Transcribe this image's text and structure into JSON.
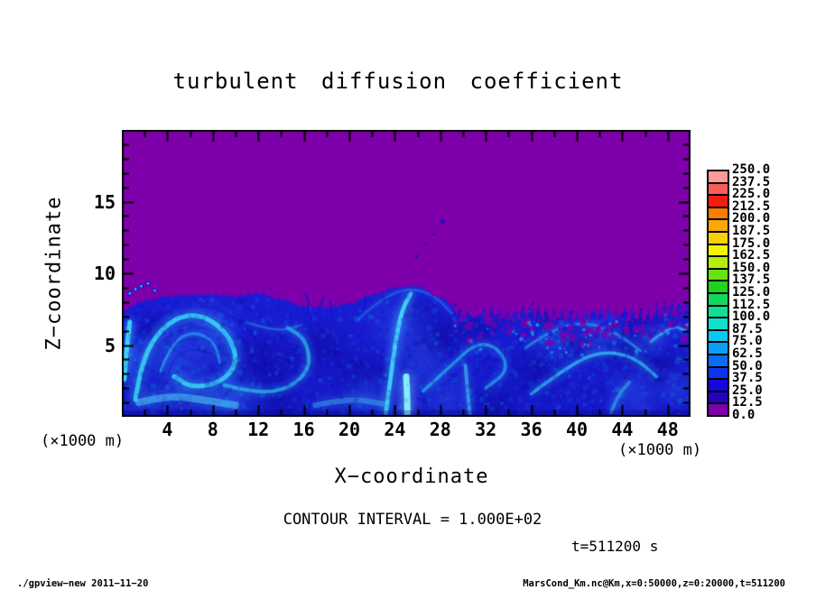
{
  "title": "turbulent diffusion coefficient",
  "axes": {
    "x": {
      "label": "X−coordinate",
      "unit": "(×1000 m)",
      "min": 0,
      "max": 50,
      "major_tick_values": [
        4,
        8,
        12,
        16,
        20,
        24,
        28,
        32,
        36,
        40,
        44,
        48
      ],
      "minor_step": 2
    },
    "z": {
      "label": "Z−coordinate",
      "unit": "(×1000 m)",
      "min": 0,
      "max": 20,
      "major_tick_values": [
        5,
        10,
        15
      ],
      "minor_step": 1
    }
  },
  "colorbar": {
    "min": 0.0,
    "max": 250.0,
    "step": 12.5,
    "colors": [
      "#7d00aa",
      "#2503bd",
      "#1408dc",
      "#0d35ee",
      "#0a6cf6",
      "#089ff9",
      "#0ac8f3",
      "#0fe0cc",
      "#12dd97",
      "#14d65c",
      "#20d41d",
      "#66e411",
      "#b4ee0b",
      "#f5f208",
      "#f7d107",
      "#f9a805",
      "#f97c04",
      "#f41c0c",
      "#f85d58",
      "#fb9c9a"
    ]
  },
  "annotations": {
    "contour_interval": "CONTOUR INTERVAL = 1.000E+02",
    "time": "t=511200 s"
  },
  "footer": {
    "left": "./gpview−new  2011−11−20",
    "right": "MarsCond_Km.nc@Km,x=0:50000,z=0:20000,t=511200"
  },
  "chart_data": {
    "type": "heatmap",
    "title": "turbulent diffusion coefficient",
    "xlabel": "X-coordinate (×1000 m)",
    "ylabel": "Z-coordinate (×1000 m)",
    "xlim": [
      0,
      50
    ],
    "ylim": [
      0,
      20
    ],
    "value_range": [
      0,
      250
    ],
    "level_step": 12.5,
    "contour_interval": 100.0,
    "time_seconds": 511200,
    "background_color": "#7d00aa",
    "mixed_layer_color": "#1b1cd6",
    "field_summary": "Near-zero diffusion coefficient (0–12.5, purple) fills the region above z≈7–9; below a sharp wavy interface lies a turbulent convective layer with values mostly 25–100 (blue to cyan) organized in vortices, plumes and filaments; interface is smooth with large domes for x<29 and fractally ragged with purple intrusions for x>29; a trail of detached parcels appears near x≈25–28 at z≈10.5–13.6.",
    "interface_profile": {
      "x": [
        0,
        2,
        4,
        6,
        8,
        10,
        12,
        14,
        16,
        18,
        20,
        22,
        24,
        26,
        28,
        30,
        32,
        34,
        36,
        38,
        40,
        42,
        44,
        46,
        48,
        50
      ],
      "z": [
        7.4,
        8.1,
        8.4,
        8.5,
        8.5,
        8.4,
        8.6,
        8.2,
        7.7,
        7.6,
        7.9,
        8.5,
        9.0,
        9.1,
        8.3,
        7.1,
        7.2,
        7.0,
        7.3,
        7.0,
        6.9,
        7.2,
        7.1,
        6.9,
        7.5,
        7.7
      ]
    },
    "features": {
      "filaments": [
        {
          "p": [
            [
              0.2,
              2.6
            ],
            [
              0.4,
              4.5
            ],
            [
              0.7,
              6.6
            ]
          ],
          "w": 5,
          "c": "#40e0ff",
          "a": 0.9,
          "b": 5
        },
        {
          "p": [
            [
              1.2,
              1.2
            ],
            [
              1.6,
              3.4
            ],
            [
              3.0,
              5.8
            ],
            [
              5.2,
              7.1
            ],
            [
              7.5,
              7.0
            ],
            [
              9.5,
              5.6
            ],
            [
              10.2,
              3.8
            ],
            [
              8.8,
              2.4
            ],
            [
              6.2,
              2.0
            ],
            [
              4.6,
              2.8
            ]
          ],
          "w": 5,
          "c": "#38d8f8",
          "a": 0.85,
          "b": 6
        },
        {
          "p": [
            [
              3.4,
              3.2
            ],
            [
              4.4,
              5.2
            ],
            [
              6.4,
              6.0
            ],
            [
              8.2,
              5.2
            ],
            [
              8.6,
              3.8
            ]
          ],
          "w": 3,
          "c": "#2bb8f0",
          "a": 0.55,
          "b": 4
        },
        {
          "p": [
            [
              9.0,
              2.2
            ],
            [
              12.0,
              1.6
            ],
            [
              14.8,
              2.0
            ],
            [
              16.6,
              3.4
            ],
            [
              16.2,
              5.4
            ],
            [
              14.6,
              6.2
            ]
          ],
          "w": 4,
          "c": "#30c8f0",
          "a": 0.65,
          "b": 4
        },
        {
          "p": [
            [
              11.0,
              6.6
            ],
            [
              13.5,
              5.9
            ],
            [
              15.8,
              6.4
            ]
          ],
          "w": 2.5,
          "c": "#2f9fe8",
          "a": 0.45,
          "b": 3
        },
        {
          "p": [
            [
              23.2,
              0.2
            ],
            [
              23.6,
              2.5
            ],
            [
              24.0,
              5.0
            ],
            [
              24.6,
              7.4
            ],
            [
              25.4,
              8.6
            ]
          ],
          "w": 4.5,
          "c": "#45e2ff",
          "a": 0.85,
          "b": 5
        },
        {
          "p": [
            [
              25.1,
              0.0
            ],
            [
              25.1,
              1.3
            ],
            [
              25.0,
              2.8
            ]
          ],
          "w": 7,
          "c": "#86f6ff",
          "a": 0.95,
          "b": 7
        },
        {
          "p": [
            [
              20.8,
              6.8
            ],
            [
              23.0,
              8.4
            ],
            [
              25.5,
              9.0
            ],
            [
              27.6,
              8.4
            ],
            [
              29.0,
              7.2
            ]
          ],
          "w": 3,
          "c": "#2a80e8",
          "a": 0.45,
          "b": 4
        },
        {
          "p": [
            [
              26.5,
              1.8
            ],
            [
              29.0,
              3.6
            ],
            [
              31.2,
              5.2
            ],
            [
              33.2,
              4.8
            ],
            [
              34.0,
              3.2
            ],
            [
              32.0,
              2.0
            ]
          ],
          "w": 3.5,
          "c": "#2fc0f0",
          "a": 0.6,
          "b": 4
        },
        {
          "p": [
            [
              36.0,
              1.6
            ],
            [
              39.0,
              3.4
            ],
            [
              42.0,
              4.6
            ],
            [
              45.0,
              4.2
            ],
            [
              47.0,
              2.8
            ]
          ],
          "w": 3.5,
          "c": "#38d0f8",
          "a": 0.65,
          "b": 4
        },
        {
          "p": [
            [
              35.5,
              4.8
            ],
            [
              38.0,
              6.2
            ],
            [
              41.0,
              6.6
            ],
            [
              43.6,
              5.8
            ],
            [
              45.6,
              4.6
            ]
          ],
          "w": 2.8,
          "c": "#30b0f0",
          "a": 0.55,
          "b": 3
        },
        {
          "p": [
            [
              46.5,
              5.2
            ],
            [
              48.2,
              6.4
            ],
            [
              49.6,
              6.0
            ]
          ],
          "w": 2.8,
          "c": "#40d0f8",
          "a": 0.6,
          "b": 3
        },
        {
          "p": [
            [
              1.5,
              1.0
            ],
            [
              4.0,
              1.5
            ],
            [
              7.0,
              1.2
            ],
            [
              10.0,
              0.8
            ]
          ],
          "w": 8,
          "c": "#50e0f8",
          "a": 0.5,
          "b": 8
        },
        {
          "p": [
            [
              17.0,
              0.8
            ],
            [
              20.0,
              1.3
            ],
            [
              23.0,
              0.9
            ]
          ],
          "w": 6,
          "c": "#40c8f0",
          "a": 0.4,
          "b": 6
        },
        {
          "p": [
            [
              30.6,
              0.2
            ],
            [
              30.4,
              1.8
            ],
            [
              30.2,
              3.6
            ]
          ],
          "w": 4,
          "c": "#48d8f8",
          "a": 0.55,
          "b": 5
        },
        {
          "p": [
            [
              43.0,
              0.3
            ],
            [
              43.6,
              1.5
            ],
            [
              44.6,
              2.4
            ]
          ],
          "w": 4,
          "c": "#40d0f0",
          "a": 0.45,
          "b": 4
        }
      ],
      "dark_patches": [
        [
          12.5,
          3.5,
          4,
          0.5
        ],
        [
          17.5,
          4.8,
          3,
          0.5
        ],
        [
          21,
          3,
          3,
          0.45
        ],
        [
          25.5,
          7.3,
          2.2,
          0.4
        ],
        [
          28,
          5.5,
          3.2,
          0.5
        ],
        [
          31.5,
          6.3,
          2.4,
          0.45
        ],
        [
          36.5,
          3.2,
          3,
          0.45
        ],
        [
          40.5,
          5.2,
          2.4,
          0.45
        ],
        [
          44.5,
          4.8,
          2.8,
          0.5
        ],
        [
          47.5,
          3.5,
          2.4,
          0.45
        ],
        [
          2.5,
          6.2,
          2,
          0.4
        ],
        [
          14,
          0.8,
          2.4,
          0.4
        ],
        [
          33,
          1,
          2.4,
          0.4
        ],
        [
          37.5,
          6.8,
          1.8,
          0.5
        ],
        [
          46,
          6.5,
          1.8,
          0.45
        ]
      ],
      "bright_patches": [
        [
          5,
          4,
          3.5,
          0.5
        ],
        [
          8,
          6,
          3,
          0.45
        ],
        [
          24.5,
          6.3,
          3.2,
          0.45
        ],
        [
          26.5,
          3.8,
          2.8,
          0.4
        ],
        [
          38,
          5.4,
          2.4,
          0.45
        ],
        [
          42,
          5.8,
          2.6,
          0.5
        ],
        [
          46.5,
          5.3,
          2,
          0.45
        ],
        [
          10,
          1.5,
          3,
          0.4
        ],
        [
          21.5,
          1.5,
          2.5,
          0.35
        ],
        [
          28.5,
          1.2,
          2.5,
          0.4
        ],
        [
          45,
          1.5,
          3,
          0.4
        ],
        [
          48.8,
          2,
          2,
          0.4
        ],
        [
          0.8,
          4.5,
          2,
          0.5
        ]
      ],
      "wisps": [
        [
          [
            16.2,
            7.0
          ],
          [
            16.5,
            8.0
          ],
          [
            16.1,
            8.6
          ]
        ],
        [
          [
            17.3,
            7.2
          ],
          [
            17.7,
            8.3
          ]
        ],
        [
          [
            18.5,
            7.1
          ],
          [
            18.3,
            8.1
          ]
        ],
        [
          [
            21.2,
            7.4
          ],
          [
            21.5,
            8.2
          ]
        ]
      ],
      "detached_dots": [
        [
          28.2,
          13.6,
          2.4
        ],
        [
          27.4,
          12.7,
          1.3
        ],
        [
          26.7,
          12.0,
          1.2
        ],
        [
          25.9,
          11.2,
          1.6
        ],
        [
          25.2,
          10.6,
          1.0
        ],
        [
          3.3,
          9.4,
          0.9
        ],
        [
          6.8,
          9.1,
          0.8
        ],
        [
          8.7,
          9.6,
          0.7
        ],
        [
          11.2,
          9.0,
          0.7
        ],
        [
          13.1,
          8.9,
          0.8
        ]
      ],
      "interface_chain": [
        [
          0.7,
          8.6
        ],
        [
          1.2,
          8.9
        ],
        [
          1.7,
          9.1
        ],
        [
          2.3,
          9.3
        ],
        [
          2.9,
          8.8
        ]
      ],
      "striation_center": [
        6.5,
        2.8
      ],
      "striation_radii": [
        30,
        42,
        54,
        66,
        78
      ],
      "right_band": {
        "x_start": 29,
        "x_end": 50,
        "purple_specks": 120,
        "blue_specks": 70,
        "cyan_flecks": 45
      }
    }
  }
}
